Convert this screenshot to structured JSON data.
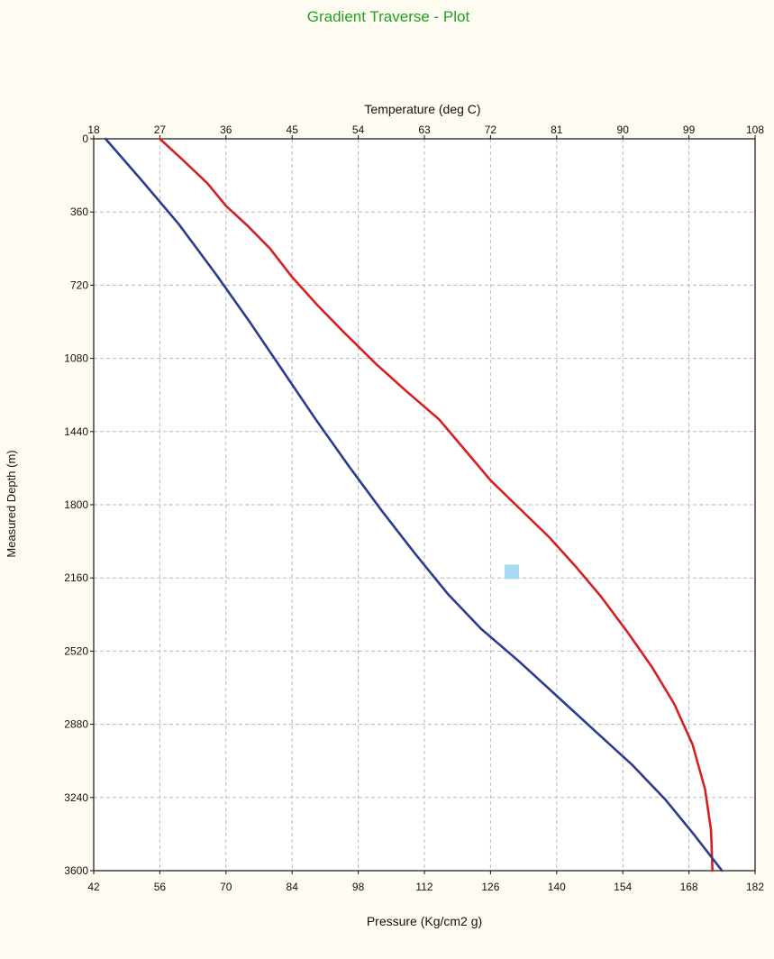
{
  "chart_data": {
    "type": "line",
    "title": "Gradient Traverse - Plot",
    "title_color": "#22a022",
    "top_axis": {
      "label": "Temperature  (deg C)",
      "range": [
        18,
        108
      ],
      "ticks": [
        18,
        27,
        36,
        45,
        54,
        63,
        72,
        81,
        90,
        99,
        108
      ]
    },
    "bottom_axis": {
      "label": "Pressure  (Kg/cm2 g)",
      "range": [
        42,
        182
      ],
      "ticks": [
        42,
        56,
        70,
        84,
        98,
        112,
        126,
        140,
        154,
        168,
        182
      ]
    },
    "y_axis": {
      "label": "Measured Depth  (m)",
      "range": [
        0,
        3600
      ],
      "inverted": true,
      "ticks": [
        0,
        360,
        720,
        1080,
        1440,
        1800,
        2160,
        2520,
        2880,
        3240,
        3600
      ]
    },
    "grid": true,
    "series": [
      {
        "axis": "top",
        "color": "#d42020",
        "points": [
          {
            "x": 27,
            "y": 0
          },
          {
            "x": 30,
            "y": 100
          },
          {
            "x": 33.5,
            "y": 220
          },
          {
            "x": 36,
            "y": 330
          },
          {
            "x": 39,
            "y": 430
          },
          {
            "x": 42,
            "y": 540
          },
          {
            "x": 45,
            "y": 680
          },
          {
            "x": 48.5,
            "y": 820
          },
          {
            "x": 52,
            "y": 950
          },
          {
            "x": 56.5,
            "y": 1110
          },
          {
            "x": 60.5,
            "y": 1240
          },
          {
            "x": 65,
            "y": 1380
          },
          {
            "x": 68.5,
            "y": 1530
          },
          {
            "x": 72,
            "y": 1680
          },
          {
            "x": 76,
            "y": 1820
          },
          {
            "x": 80,
            "y": 1960
          },
          {
            "x": 83.5,
            "y": 2100
          },
          {
            "x": 87,
            "y": 2250
          },
          {
            "x": 90.5,
            "y": 2420
          },
          {
            "x": 94,
            "y": 2600
          },
          {
            "x": 97,
            "y": 2780
          },
          {
            "x": 99.5,
            "y": 2980
          },
          {
            "x": 101.2,
            "y": 3200
          },
          {
            "x": 102,
            "y": 3400
          },
          {
            "x": 102.2,
            "y": 3600
          }
        ]
      },
      {
        "axis": "bottom",
        "color": "#2b3c8f",
        "points": [
          {
            "x": 44.5,
            "y": 0
          },
          {
            "x": 52,
            "y": 200
          },
          {
            "x": 60,
            "y": 420
          },
          {
            "x": 68,
            "y": 670
          },
          {
            "x": 75,
            "y": 900
          },
          {
            "x": 82,
            "y": 1140
          },
          {
            "x": 89,
            "y": 1380
          },
          {
            "x": 96,
            "y": 1610
          },
          {
            "x": 103,
            "y": 1830
          },
          {
            "x": 110,
            "y": 2040
          },
          {
            "x": 117,
            "y": 2240
          },
          {
            "x": 124,
            "y": 2410
          },
          {
            "x": 132,
            "y": 2570
          },
          {
            "x": 140,
            "y": 2740
          },
          {
            "x": 148,
            "y": 2910
          },
          {
            "x": 156,
            "y": 3080
          },
          {
            "x": 163,
            "y": 3250
          },
          {
            "x": 169,
            "y": 3420
          },
          {
            "x": 175,
            "y": 3600
          }
        ]
      }
    ],
    "marker": {
      "x": 130.5,
      "y": 2130,
      "axis": "bottom",
      "color": "#a9dbf2"
    }
  }
}
